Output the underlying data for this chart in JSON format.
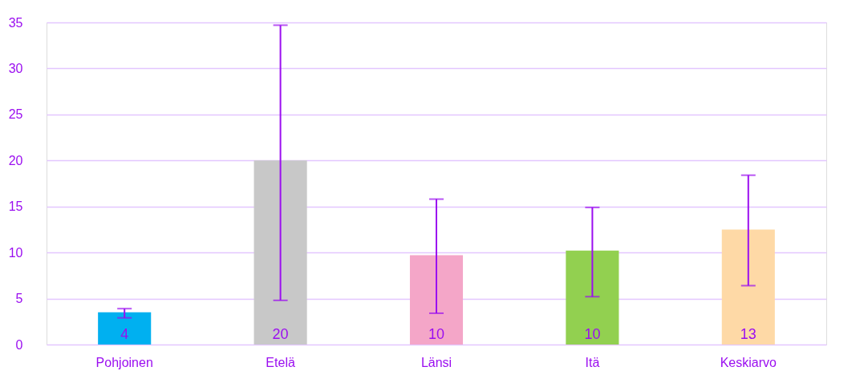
{
  "chart_data": {
    "type": "bar",
    "categories": [
      "Pohjoinen",
      "Etelä",
      "Länsi",
      "Itä",
      "Keskiarvo"
    ],
    "values": [
      3.5,
      20.0,
      9.7,
      10.2,
      12.5
    ],
    "colors": [
      "#00b0f0",
      "#c8c8c8",
      "#f4a6c8",
      "#92d050",
      "#fed9a6"
    ],
    "value_labels": [
      "4",
      "20",
      "10",
      "10",
      "13"
    ],
    "errors": [
      [
        2.9,
        3.9
      ],
      [
        4.8,
        34.7
      ],
      [
        3.4,
        15.8
      ],
      [
        5.2,
        14.9
      ],
      [
        6.4,
        18.4
      ]
    ],
    "ylim": [
      0,
      35
    ],
    "yticks": [
      0,
      5,
      10,
      15,
      20,
      25,
      30,
      35
    ],
    "grid": "y"
  }
}
